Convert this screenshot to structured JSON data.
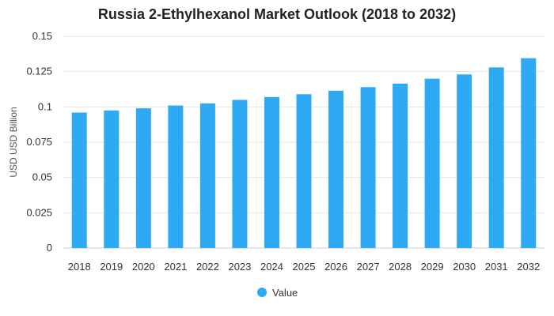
{
  "chart_data": {
    "type": "bar",
    "title": "Russia 2-Ethylhexanol Market Outlook (2018 to 2032)",
    "xlabel": "",
    "ylabel": "USD USD Billion",
    "categories": [
      "2018",
      "2019",
      "2020",
      "2021",
      "2022",
      "2023",
      "2024",
      "2025",
      "2026",
      "2027",
      "2028",
      "2029",
      "2030",
      "2031",
      "2032"
    ],
    "series": [
      {
        "name": "Value",
        "color": "#2eaaf4",
        "values": [
          0.096,
          0.0975,
          0.099,
          0.101,
          0.1025,
          0.105,
          0.107,
          0.109,
          0.1115,
          0.114,
          0.1165,
          0.12,
          0.123,
          0.128,
          0.1345
        ]
      }
    ],
    "ylim": [
      0,
      0.15
    ],
    "yticks": [
      "0",
      "0.025",
      "0.05",
      "0.075",
      "0.1",
      "0.125",
      "0.15"
    ],
    "grid": true,
    "legend": "bottom-center"
  }
}
